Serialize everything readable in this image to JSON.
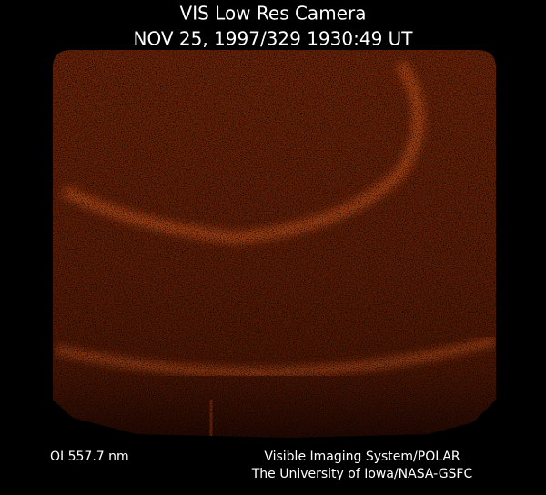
{
  "header": {
    "title": "VIS Low Res Camera",
    "timestamp": "NOV 25, 1997/329 1930:49 UT"
  },
  "footer": {
    "filter": "OI 557.7 nm",
    "credit_lines": [
      "Visible Imaging System/POLAR",
      "The University of Iowa/NASA-GSFC"
    ]
  }
}
